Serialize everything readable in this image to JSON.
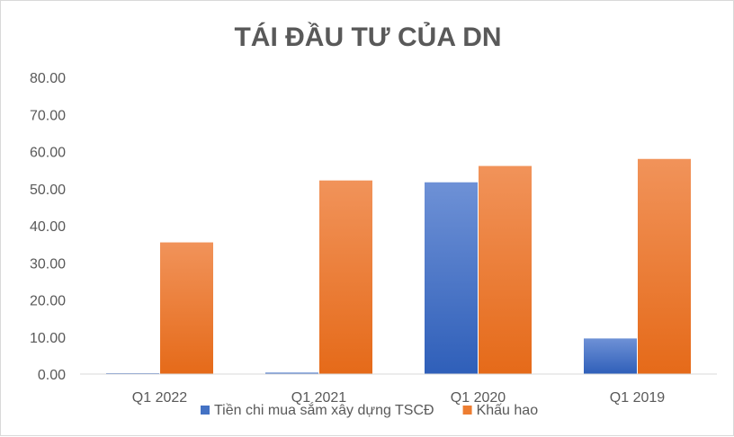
{
  "chart_data": {
    "type": "bar",
    "title": "TÁI ĐẦU TƯ CỦA DN",
    "xlabel": "",
    "ylabel": "",
    "categories": [
      "Q1 2022",
      "Q1 2021",
      "Q1 2020",
      "Q1 2019"
    ],
    "series": [
      {
        "name": "Tiền chi mua sắm xây dựng TSCĐ",
        "values": [
          0.1,
          0.4,
          51.7,
          9.6
        ],
        "color": "#4472c4"
      },
      {
        "name": "Khấu hao",
        "values": [
          35.5,
          52.2,
          56.1,
          58.0
        ],
        "color": "#ed7d31"
      }
    ],
    "ylim": [
      0,
      80
    ],
    "yticks": [
      "0.00",
      "10.00",
      "20.00",
      "30.00",
      "40.00",
      "50.00",
      "60.00",
      "70.00",
      "80.00"
    ],
    "grid": false,
    "legend": "bottom"
  }
}
